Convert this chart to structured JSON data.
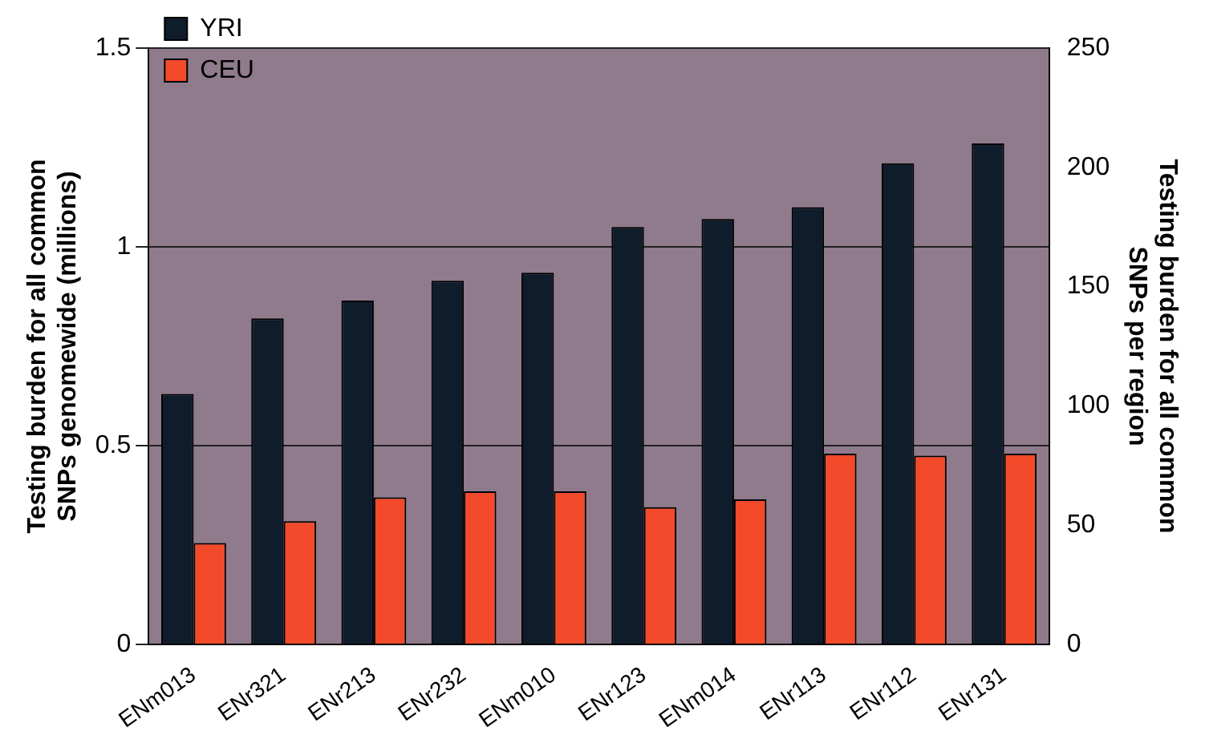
{
  "chart_data": {
    "type": "bar",
    "ylabel": "Testing burden for all common SNPs genomewide (millions)",
    "y2label": "Testing burden for all common SNPs per region",
    "categories": [
      "ENm013",
      "ENr321",
      "ENr213",
      "ENr232",
      "ENm010",
      "ENr123",
      "ENm014",
      "ENr113",
      "ENr112",
      "ENr131"
    ],
    "series": [
      {
        "name": "YRI",
        "color": "#0f1c2c",
        "values": [
          0.63,
          0.82,
          0.865,
          0.915,
          0.935,
          1.05,
          1.07,
          1.1,
          1.21,
          1.26
        ]
      },
      {
        "name": "CEU",
        "color": "#f24a2a",
        "values": [
          0.255,
          0.31,
          0.37,
          0.385,
          0.385,
          0.345,
          0.365,
          0.48,
          0.475,
          0.48
        ]
      }
    ],
    "ylim": [
      0,
      1.5
    ],
    "yticks": [
      0,
      0.5,
      1,
      1.5
    ],
    "y2lim": [
      0,
      250
    ],
    "y2ticks": [
      0,
      50,
      100,
      150,
      200,
      250
    ],
    "grid": "y",
    "legend": "top left"
  }
}
